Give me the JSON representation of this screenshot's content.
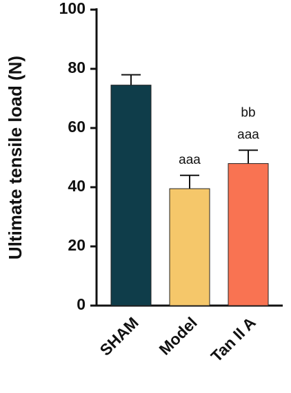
{
  "chart_data": {
    "type": "bar",
    "y_label": "Ultimate tensile load (N)",
    "categories": [
      "SHAM",
      "Model",
      "Tan II A"
    ],
    "values": [
      74.5,
      39.5,
      48
    ],
    "errors": [
      3.5,
      4.5,
      4.5
    ],
    "colors": [
      "#0f3d4a",
      "#f5c76a",
      "#f97352"
    ],
    "annotations": [
      null,
      [
        "aaa"
      ],
      [
        "bb",
        "aaa"
      ]
    ],
    "ylim": [
      0,
      100
    ],
    "yticks": [
      0,
      20,
      40,
      60,
      80,
      100
    ]
  }
}
